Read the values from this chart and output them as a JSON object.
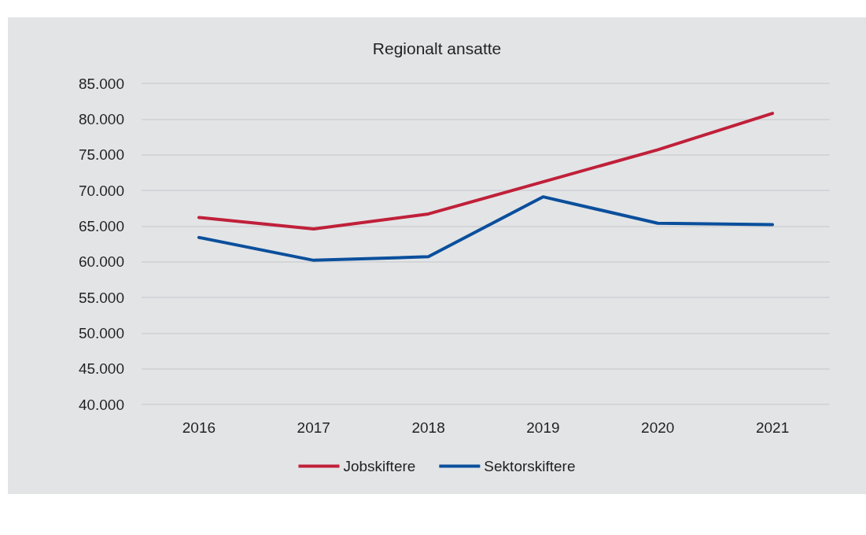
{
  "chart_data": {
    "type": "line",
    "title": "Regionalt ansatte",
    "categories": [
      "2016",
      "2017",
      "2018",
      "2019",
      "2020",
      "2021"
    ],
    "series": [
      {
        "name": "Jobskiftere",
        "color": "#c0203a",
        "values": [
          66200,
          64600,
          66700,
          71200,
          75700,
          80800
        ]
      },
      {
        "name": "Sektorskiftere",
        "color": "#0a4f9c",
        "values": [
          63400,
          60200,
          60700,
          69100,
          65400,
          65200
        ]
      }
    ],
    "ylim": [
      40000,
      85000
    ],
    "yticks": [
      {
        "value": 40000,
        "label": "40.000"
      },
      {
        "value": 45000,
        "label": "45.000"
      },
      {
        "value": 50000,
        "label": "50.000"
      },
      {
        "value": 55000,
        "label": "55.000"
      },
      {
        "value": 60000,
        "label": "60.000"
      },
      {
        "value": 65000,
        "label": "65.000"
      },
      {
        "value": 70000,
        "label": "70.000"
      },
      {
        "value": 75000,
        "label": "75.000"
      },
      {
        "value": 80000,
        "label": "80.000"
      },
      {
        "value": 85000,
        "label": "85.000"
      }
    ],
    "grid": "y",
    "legend": "bottom",
    "marker": "none",
    "line_style": "solid"
  }
}
